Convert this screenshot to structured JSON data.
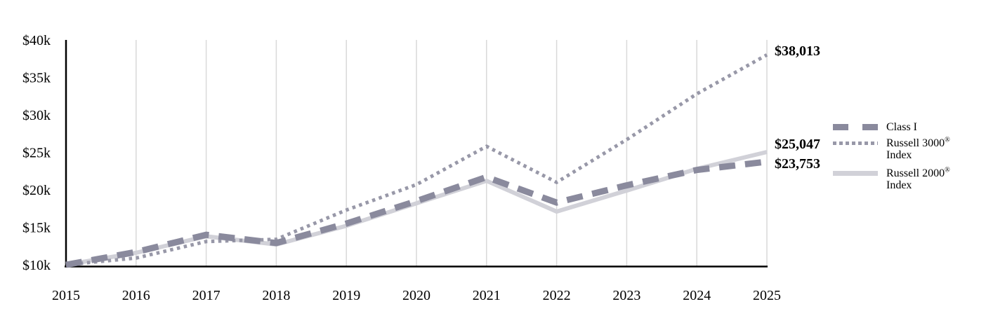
{
  "chart_data": {
    "type": "line",
    "title": "",
    "xlabel": "",
    "ylabel": "",
    "x": [
      2015,
      2016,
      2017,
      2018,
      2019,
      2020,
      2021,
      2022,
      2023,
      2024,
      2025
    ],
    "x_tick_labels": [
      "2015",
      "2016",
      "2017",
      "2018",
      "2019",
      "2020",
      "2021",
      "2022",
      "2023",
      "2024",
      "2025"
    ],
    "ylim": [
      10000,
      40000
    ],
    "y_ticks": [
      {
        "value": 10000,
        "label": "$10k"
      },
      {
        "value": 15000,
        "label": "$15k"
      },
      {
        "value": 20000,
        "label": "$20k"
      },
      {
        "value": 25000,
        "label": "$25k"
      },
      {
        "value": 30000,
        "label": "$30k"
      },
      {
        "value": 35000,
        "label": "$35k"
      },
      {
        "value": 40000,
        "label": "$40k"
      }
    ],
    "grid": "vertical-only",
    "legend_position": "right",
    "series": [
      {
        "name": "Class I",
        "style": "dashed",
        "color": "#8a8a9d",
        "values": [
          10000,
          11700,
          14000,
          12900,
          15500,
          18500,
          21700,
          18300,
          20600,
          22650,
          23753
        ],
        "end_label": "$23,753"
      },
      {
        "name": "Russell 3000® Index",
        "style": "dotted",
        "color": "#9898a8",
        "values": [
          10000,
          10900,
          13100,
          13400,
          17300,
          20700,
          25800,
          21000,
          26700,
          32800,
          38013
        ],
        "end_label": "$38,013"
      },
      {
        "name": "Russell 2000® Index",
        "style": "solid",
        "color": "#d1d1d8",
        "values": [
          10000,
          11600,
          13800,
          12700,
          15200,
          18200,
          21200,
          17100,
          19900,
          22800,
          25047
        ],
        "end_label": "$25,047"
      }
    ]
  },
  "legend": {
    "items": [
      {
        "line1": "Class I",
        "reg": "",
        "line2": ""
      },
      {
        "line1": "Russell 3000",
        "reg": "®",
        "line2": "Index"
      },
      {
        "line1": "Russell 2000",
        "reg": "®",
        "line2": "Index"
      }
    ]
  },
  "colors": {
    "axis": "#000000",
    "gridline": "#d9d9d9",
    "text": "#000000"
  }
}
